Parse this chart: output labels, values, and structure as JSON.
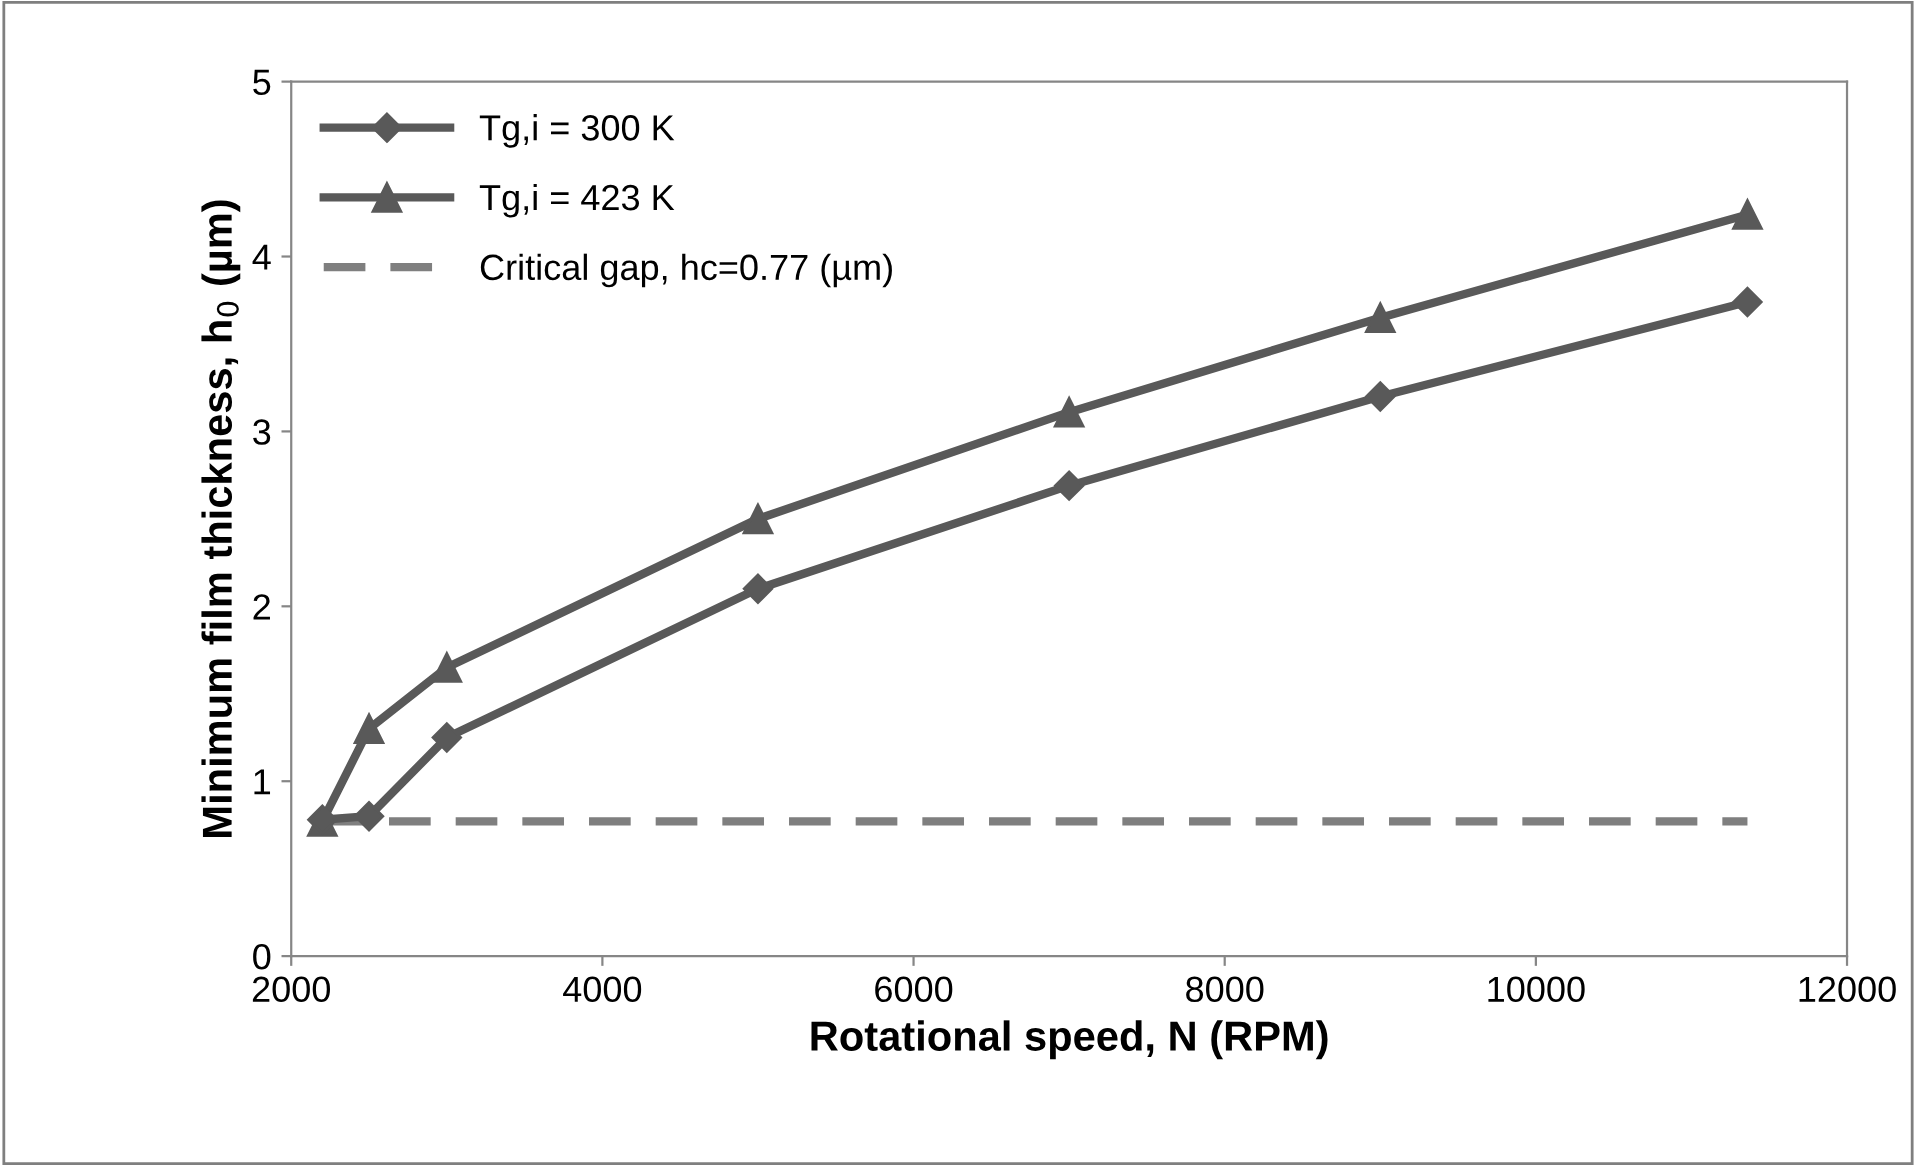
{
  "chart_data": {
    "type": "line",
    "xlabel": "Rotational speed, N (RPM)",
    "ylabel": "Minimum film thickness, h$_{0}$ (µm)",
    "xlim": [
      2000,
      12000
    ],
    "xticks": [
      2000,
      4000,
      6000,
      8000,
      10000,
      12000
    ],
    "ylim": [
      0,
      5
    ],
    "yticks": [
      0,
      1,
      2,
      3,
      4,
      5
    ],
    "grid": false,
    "legend": "top left",
    "series": [
      {
        "name": "Tg,i = 300 K",
        "color": "#595959",
        "marker": "diamond",
        "line_style": "solid",
        "x": [
          2200,
          2500,
          3000,
          5000,
          7000,
          9000,
          11360
        ],
        "values": [
          0.78,
          0.8,
          1.25,
          2.1,
          2.69,
          3.2,
          3.74
        ]
      },
      {
        "name": "Tg,i = 423 K",
        "color": "#595959",
        "marker": "triangle",
        "line_style": "solid",
        "x": [
          2200,
          2500,
          3000,
          5000,
          7000,
          9000,
          11360
        ],
        "values": [
          0.77,
          1.3,
          1.65,
          2.5,
          3.11,
          3.65,
          4.24
        ]
      },
      {
        "name": "Critical gap, hc=0.77 (µm)",
        "color": "#7f7f7f",
        "marker": "none",
        "line_style": "dashed",
        "x": [
          2200,
          11360
        ],
        "values": [
          0.77,
          0.77
        ]
      }
    ]
  }
}
